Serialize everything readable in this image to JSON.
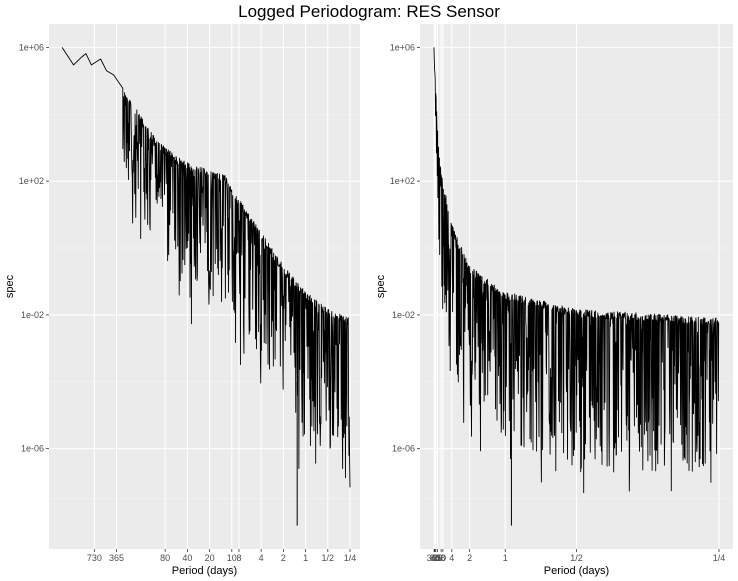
{
  "title": "Logged Periodogram: RES Sensor",
  "chart_data": [
    {
      "type": "line",
      "title": "Logged Periodogram: RES Sensor",
      "xlabel": "Period (days)",
      "ylabel": "spec",
      "x_scale": "log",
      "y_scale": "log",
      "x_range_days": [
        2200,
        0.25
      ],
      "ylim": [
        1e-09,
        5000000.0
      ],
      "y_ticks": [
        {
          "value": 1000000.0,
          "label": "1e+06"
        },
        {
          "value": 100.0,
          "label": "1e+02"
        },
        {
          "value": 0.01,
          "label": "1e-02"
        },
        {
          "value": 1e-06,
          "label": "1e-06"
        }
      ],
      "x_ticks": [
        {
          "value": 730,
          "label": "730"
        },
        {
          "value": 365,
          "label": "365"
        },
        {
          "value": 80,
          "label": "80"
        },
        {
          "value": 40,
          "label": "40"
        },
        {
          "value": 20,
          "label": "20"
        },
        {
          "value": 10,
          "label": "10"
        },
        {
          "value": 8,
          "label": "8"
        },
        {
          "value": 4,
          "label": "4"
        },
        {
          "value": 2,
          "label": "2"
        },
        {
          "value": 1,
          "label": "1"
        },
        {
          "value": 0.5,
          "label": "1/2"
        },
        {
          "value": 0.25,
          "label": "1/4"
        }
      ],
      "series": [
        {
          "upper_envelope": [
            {
              "x": 2000,
              "y": 1000000.0
            },
            {
              "x": 1400,
              "y": 300000.0
            },
            {
              "x": 1100,
              "y": 500000.0
            },
            {
              "x": 950,
              "y": 650000.0
            },
            {
              "x": 800,
              "y": 300000.0
            },
            {
              "x": 600,
              "y": 450000.0
            },
            {
              "x": 500,
              "y": 200000.0
            },
            {
              "x": 400,
              "y": 150000.0
            },
            {
              "x": 300,
              "y": 60000.0
            },
            {
              "x": 200,
              "y": 15000.0
            },
            {
              "x": 100,
              "y": 1500.0
            },
            {
              "x": 50,
              "y": 500.0
            },
            {
              "x": 20,
              "y": 200.0
            },
            {
              "x": 12,
              "y": 150.0
            },
            {
              "x": 8,
              "y": 30.0
            },
            {
              "x": 4,
              "y": 3.0
            },
            {
              "x": 2,
              "y": 0.3
            },
            {
              "x": 1,
              "y": 0.05
            },
            {
              "x": 0.5,
              "y": 0.015
            },
            {
              "x": 0.25,
              "y": 0.008
            }
          ],
          "lower_envelope": [
            {
              "x": 300,
              "y": 150.0
            },
            {
              "x": 200,
              "y": 20.0
            },
            {
              "x": 100,
              "y": 1.0
            },
            {
              "x": 50,
              "y": 0.1
            },
            {
              "x": 20,
              "y": 0.05
            },
            {
              "x": 10,
              "y": 0.01
            },
            {
              "x": 8,
              "y": 0.005
            },
            {
              "x": 4,
              "y": 0.0005
            },
            {
              "x": 2,
              "y": 5e-05
            },
            {
              "x": 1,
              "y": 1e-06
            },
            {
              "x": 0.5,
              "y": 1e-07
            },
            {
              "x": 0.25,
              "y": 1e-07
            }
          ],
          "minimum": {
            "x": 1.3,
            "y": 5e-09
          }
        }
      ]
    },
    {
      "type": "line",
      "xlabel": "Period (days)",
      "ylabel": "spec",
      "x_scale": "linear in frequency",
      "y_scale": "log",
      "x_range_days": [
        2200,
        0.25
      ],
      "ylim": [
        1e-09,
        5000000.0
      ],
      "y_ticks": [
        {
          "value": 1000000.0,
          "label": "1e+06"
        },
        {
          "value": 100.0,
          "label": "1e+02"
        },
        {
          "value": 0.01,
          "label": "1e-02"
        },
        {
          "value": 1e-06,
          "label": "1e-06"
        }
      ],
      "x_ticks": [
        {
          "value": 365,
          "label": "365"
        },
        {
          "value": 80,
          "label": "80"
        },
        {
          "value": 40,
          "label": "40"
        },
        {
          "value": 20,
          "label": "20"
        },
        {
          "value": 10,
          "label": "10"
        },
        {
          "value": 8,
          "label": "8"
        },
        {
          "value": 4,
          "label": "4"
        },
        {
          "value": 2,
          "label": "2"
        },
        {
          "value": 1,
          "label": "1"
        },
        {
          "value": 0.5,
          "label": "1/2"
        },
        {
          "value": 0.25,
          "label": "1/4"
        }
      ],
      "series": [
        {
          "upper_envelope": [
            {
              "x": 2000,
              "y": 1000000.0
            },
            {
              "x": 15,
              "y": 800.0
            },
            {
              "x": 8,
              "y": 100.0
            },
            {
              "x": 4,
              "y": 5.0
            },
            {
              "x": 2,
              "y": 0.3
            },
            {
              "x": 1,
              "y": 0.05
            },
            {
              "x": 0.5,
              "y": 0.015
            },
            {
              "x": 0.25,
              "y": 0.008
            }
          ],
          "lower_envelope": [
            {
              "x": 15,
              "y": 1.0
            },
            {
              "x": 8,
              "y": 0.01
            },
            {
              "x": 4,
              "y": 0.0002
            },
            {
              "x": 2,
              "y": 2e-05
            },
            {
              "x": 1,
              "y": 2e-06
            },
            {
              "x": 0.5,
              "y": 2e-07
            },
            {
              "x": 0.25,
              "y": 2e-07
            }
          ],
          "minimum": {
            "x": 0.92,
            "y": 5e-09
          }
        }
      ]
    }
  ]
}
